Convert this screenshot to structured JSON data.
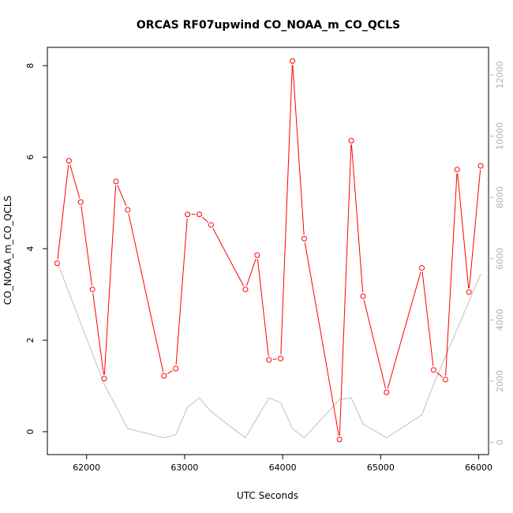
{
  "chart_data": {
    "type": "line",
    "title": "ORCAS RF07upwind CO_NOAA_m_CO_QCLS",
    "xlabel": "UTC Seconds",
    "ylabel": "CO_NOAA_m_CO_QCLS",
    "xlim": [
      61600,
      66100
    ],
    "ylim": [
      -0.5,
      8.4
    ],
    "y2lim": [
      -400,
      12900
    ],
    "x_ticks": [
      62000,
      63000,
      64000,
      65000,
      66000
    ],
    "y_ticks": [
      0,
      2,
      4,
      6,
      8
    ],
    "y2_ticks": [
      0,
      2000,
      4000,
      6000,
      8000,
      10000,
      12000
    ],
    "grid": false,
    "legend": "none",
    "series": [
      {
        "axis": "left",
        "color": "#ff0000",
        "style": "line+points",
        "x": [
          61700,
          61820,
          61940,
          62060,
          62180,
          62300,
          62420,
          62790,
          62910,
          63030,
          63150,
          63270,
          63620,
          63740,
          63860,
          63980,
          64100,
          64220,
          64580,
          64700,
          64820,
          65060,
          65420,
          65540,
          65660,
          65780,
          65900,
          66020
        ],
        "y": [
          3.68,
          5.92,
          5.02,
          3.11,
          1.16,
          5.47,
          4.85,
          1.22,
          1.38,
          4.75,
          4.75,
          4.52,
          3.11,
          3.86,
          1.57,
          1.6,
          8.1,
          4.22,
          -0.17,
          6.36,
          2.96,
          0.86,
          3.58,
          1.35,
          1.14,
          5.73,
          3.05,
          5.81
        ]
      },
      {
        "axis": "right",
        "color": "#c0c0c0",
        "style": "line",
        "x": [
          61700,
          62180,
          62420,
          62790,
          62910,
          63030,
          63150,
          63270,
          63620,
          63860,
          63980,
          64100,
          64220,
          64580,
          64700,
          64820,
          65060,
          65420,
          65540,
          66020
        ],
        "y": [
          5900,
          1900,
          450,
          150,
          250,
          1150,
          1450,
          1000,
          150,
          1450,
          1300,
          450,
          150,
          1400,
          1450,
          600,
          150,
          900,
          1900,
          5500
        ]
      }
    ]
  }
}
